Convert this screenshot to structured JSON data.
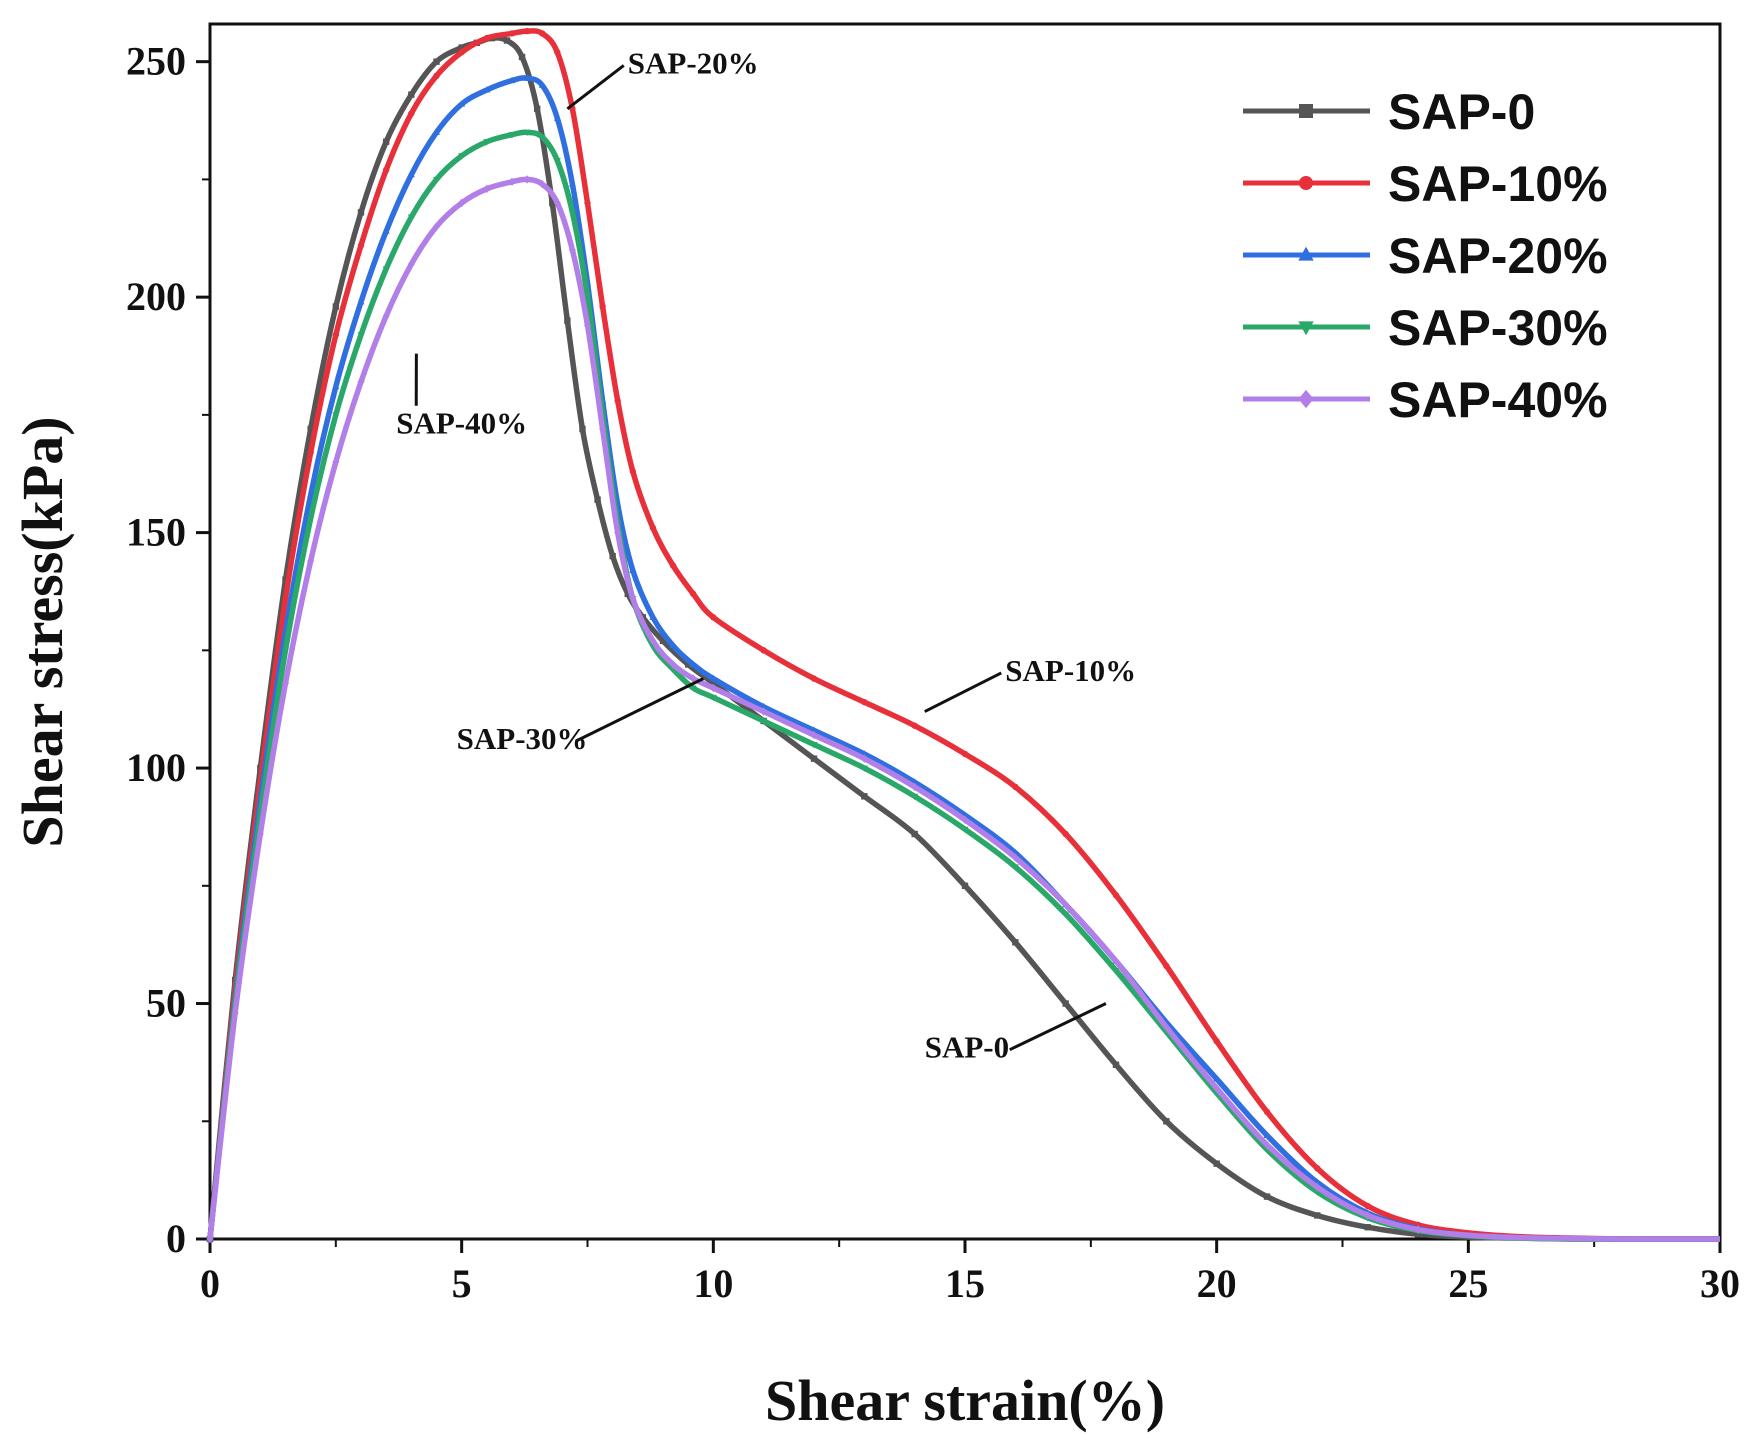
{
  "chart_data": {
    "type": "line",
    "xlabel": "Shear strain(%)",
    "ylabel": "Shear stress(kPa)",
    "xlim": [
      0,
      30
    ],
    "ylim": [
      0,
      258
    ],
    "xticks": [
      0,
      5,
      10,
      15,
      20,
      25,
      30
    ],
    "yticks": [
      0,
      50,
      100,
      150,
      200,
      250
    ],
    "legend_position": "top-right",
    "series": [
      {
        "name": "SAP-0",
        "color": "#555555",
        "marker": "square",
        "x": [
          0,
          0.5,
          1,
          1.5,
          2,
          2.5,
          3,
          3.5,
          4,
          4.5,
          5,
          5.3,
          5.6,
          5.9,
          6.2,
          6.5,
          6.8,
          7.1,
          7.4,
          7.7,
          8.0,
          8.3,
          8.6,
          9.0,
          9.5,
          10,
          11,
          12,
          13,
          14,
          15,
          16,
          17,
          18,
          19,
          20,
          21,
          22,
          23,
          24,
          25,
          26,
          27,
          28,
          29,
          30
        ],
        "y": [
          0,
          55,
          100,
          140,
          172,
          198,
          218,
          233,
          243,
          250,
          253,
          254,
          255,
          254.5,
          251,
          240,
          220,
          195,
          172,
          157,
          145,
          137,
          132,
          127,
          122,
          118,
          110,
          102,
          94,
          86,
          75,
          63,
          50,
          37,
          25,
          16,
          9,
          5,
          2.5,
          1,
          0.4,
          0.2,
          0,
          0,
          0,
          0
        ]
      },
      {
        "name": "SAP-10%",
        "color": "#e8303a",
        "marker": "circle",
        "x": [
          0,
          0.5,
          1,
          1.5,
          2,
          2.5,
          3,
          3.5,
          4,
          4.5,
          5,
          5.5,
          6,
          6.3,
          6.6,
          6.9,
          7.2,
          7.5,
          7.8,
          8.1,
          8.4,
          8.8,
          9.2,
          9.6,
          10,
          11,
          12,
          13,
          14,
          15,
          16,
          17,
          18,
          19,
          20,
          21,
          22,
          23,
          24,
          25,
          26,
          27,
          28,
          29,
          30
        ],
        "y": [
          0,
          53,
          97,
          136,
          167,
          192,
          211,
          227,
          239,
          247,
          252,
          255,
          256,
          256.5,
          256,
          252,
          240,
          220,
          198,
          178,
          163,
          151,
          143,
          137,
          132,
          125,
          119,
          114,
          109,
          103,
          96,
          86,
          73,
          58,
          42,
          27,
          15,
          7,
          3,
          1.3,
          0.5,
          0.2,
          0,
          0,
          0
        ]
      },
      {
        "name": "SAP-20%",
        "color": "#2f6fe0",
        "marker": "triangle-up",
        "x": [
          0,
          0.5,
          1,
          1.5,
          2,
          2.5,
          3,
          3.5,
          4,
          4.5,
          5,
          5.5,
          6,
          6.3,
          6.6,
          6.9,
          7.2,
          7.5,
          7.8,
          8.1,
          8.4,
          8.8,
          9.2,
          9.6,
          10,
          11,
          12,
          13,
          14,
          15,
          16,
          17,
          18,
          19,
          20,
          21,
          22,
          23,
          24,
          25,
          26,
          27,
          28,
          29,
          30
        ],
        "y": [
          0,
          51,
          93,
          129,
          158,
          181,
          199,
          214,
          226,
          235,
          241,
          244,
          246,
          246.5,
          245,
          238,
          224,
          203,
          178,
          156,
          142,
          132,
          126,
          122,
          119,
          113,
          108,
          103,
          97,
          90,
          82,
          71,
          59,
          46,
          34,
          22,
          12,
          5.5,
          2.2,
          0.8,
          0.3,
          0.1,
          0,
          0,
          0
        ]
      },
      {
        "name": "SAP-30%",
        "color": "#2aa86a",
        "marker": "triangle-down",
        "x": [
          0,
          0.5,
          1,
          1.5,
          2,
          2.5,
          3,
          3.5,
          4,
          4.5,
          5,
          5.5,
          6,
          6.3,
          6.6,
          6.9,
          7.2,
          7.5,
          7.8,
          8.1,
          8.4,
          8.8,
          9.2,
          9.6,
          10,
          11,
          12,
          13,
          14,
          15,
          16,
          17,
          18,
          19,
          20,
          21,
          22,
          23,
          24,
          25,
          26,
          27,
          28,
          29,
          30
        ],
        "y": [
          0,
          50,
          90,
          125,
          153,
          175,
          192,
          206,
          217,
          225,
          230,
          233,
          234.5,
          235,
          234,
          229,
          218,
          200,
          175,
          152,
          136,
          126,
          121,
          117,
          115,
          110,
          105,
          100,
          94,
          87,
          79,
          69,
          57,
          44,
          31,
          19,
          10,
          4.5,
          1.8,
          0.7,
          0.2,
          0,
          0,
          0,
          0
        ]
      },
      {
        "name": "SAP-40%",
        "color": "#b27ee8",
        "marker": "diamond",
        "x": [
          0,
          0.5,
          1,
          1.5,
          2,
          2.5,
          3,
          3.5,
          4,
          4.5,
          5,
          5.5,
          6,
          6.3,
          6.6,
          6.9,
          7.2,
          7.5,
          7.8,
          8.1,
          8.4,
          8.8,
          9.2,
          9.6,
          10,
          11,
          12,
          13,
          14,
          15,
          16,
          17,
          18,
          19,
          20,
          21,
          22,
          23,
          24,
          25,
          26,
          27,
          28,
          29,
          30
        ],
        "y": [
          0,
          48,
          86,
          118,
          144,
          165,
          182,
          196,
          207,
          215,
          220,
          223,
          224.5,
          225,
          224,
          220,
          210,
          194,
          172,
          150,
          136,
          127,
          122,
          119,
          117,
          112,
          107,
          102,
          96,
          89,
          81,
          71,
          59,
          45,
          32,
          20,
          11,
          5,
          2,
          0.8,
          0.3,
          0.1,
          0,
          0,
          0
        ]
      }
    ],
    "annotations": [
      {
        "text": "SAP-20%",
        "x": 8.3,
        "y": 247.5,
        "tip_x": 7.1,
        "tip_y": 240
      },
      {
        "text": "SAP-40%",
        "x": 3.7,
        "y": 171,
        "tip_x": 4.1,
        "tip_y": 188
      },
      {
        "text": "SAP-10%",
        "x": 15.8,
        "y": 118.5,
        "tip_x": 14.2,
        "tip_y": 112
      },
      {
        "text": "SAP-30%",
        "x": 4.9,
        "y": 104,
        "tip_x": 9.8,
        "tip_y": 119
      },
      {
        "text": "SAP-0",
        "x": 14.2,
        "y": 38.5,
        "tip_x": 17.8,
        "tip_y": 50
      }
    ]
  }
}
